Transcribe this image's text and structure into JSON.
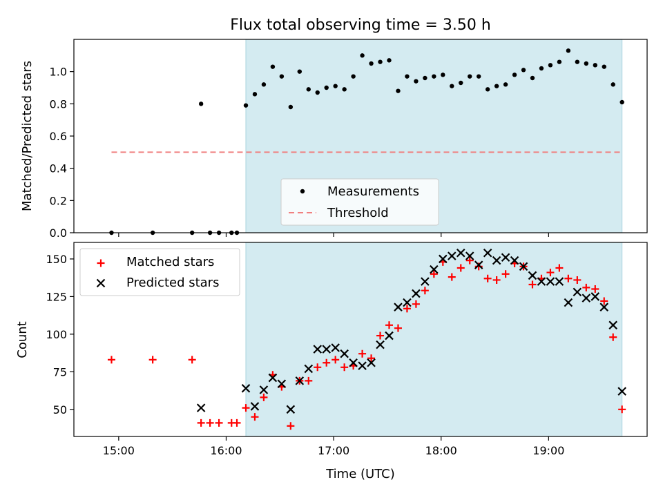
{
  "title": "Flux total observing time = 3.50 h",
  "chart_data": [
    {
      "type": "scatter",
      "ylabel": "Matched/Predicted stars",
      "xlabel": "",
      "xlim": [
        "14:35",
        "19:55"
      ],
      "ylim": [
        0,
        1.2
      ],
      "yticks": [
        0.0,
        0.2,
        0.4,
        0.6,
        0.8,
        1.0
      ],
      "ytick_labels": [
        "0.0",
        "0.2",
        "0.4",
        "0.6",
        "0.8",
        "1.0"
      ],
      "xticks": [
        "15:00",
        "16:00",
        "17:00",
        "18:00",
        "19:00"
      ],
      "shaded_span": [
        "16:11",
        "19:41"
      ],
      "shade_color": "#d4ebf1",
      "legend_position": "lower center",
      "series": [
        {
          "name": "Measurements",
          "marker": "dot",
          "color": "#000000",
          "x": [
            "14:56",
            "15:19",
            "15:41",
            "15:46",
            "15:51",
            "15:56",
            "16:03",
            "16:06",
            "16:11",
            "16:16",
            "16:21",
            "16:26",
            "16:31",
            "16:36",
            "16:41",
            "16:46",
            "16:51",
            "16:56",
            "17:01",
            "17:06",
            "17:11",
            "17:16",
            "17:21",
            "17:26",
            "17:31",
            "17:36",
            "17:41",
            "17:46",
            "17:51",
            "17:56",
            "18:01",
            "18:06",
            "18:11",
            "18:16",
            "18:21",
            "18:26",
            "18:31",
            "18:36",
            "18:41",
            "18:46",
            "18:51",
            "18:56",
            "19:01",
            "19:06",
            "19:11",
            "19:16",
            "19:21",
            "19:26",
            "19:31",
            "19:36",
            "19:41"
          ],
          "y": [
            0.0,
            0.0,
            0.0,
            0.8,
            0.0,
            0.0,
            0.0,
            0.0,
            0.79,
            0.86,
            0.92,
            1.03,
            0.97,
            0.78,
            1.0,
            0.89,
            0.87,
            0.9,
            0.91,
            0.89,
            0.97,
            1.1,
            1.05,
            1.06,
            1.07,
            0.88,
            0.97,
            0.94,
            0.96,
            0.97,
            0.98,
            0.91,
            0.93,
            0.97,
            0.97,
            0.89,
            0.91,
            0.92,
            0.98,
            1.01,
            0.96,
            1.02,
            1.04,
            1.06,
            1.13,
            1.06,
            1.05,
            1.04,
            1.03,
            0.92,
            0.81
          ]
        },
        {
          "name": "Threshold",
          "marker": "dashed-line",
          "color": "#f08080",
          "x": [
            "14:56",
            "19:41"
          ],
          "y": [
            0.5,
            0.5
          ]
        }
      ]
    },
    {
      "type": "scatter",
      "ylabel": "Count",
      "xlabel": "Time (UTC)",
      "xlim": [
        "14:35",
        "19:55"
      ],
      "ylim": [
        32,
        161
      ],
      "yticks": [
        50,
        75,
        100,
        125,
        150
      ],
      "ytick_labels": [
        "50",
        "75",
        "100",
        "125",
        "150"
      ],
      "xticks": [
        "15:00",
        "16:00",
        "17:00",
        "18:00",
        "19:00"
      ],
      "xtick_labels": [
        "15:00",
        "16:00",
        "17:00",
        "18:00",
        "19:00"
      ],
      "shaded_span": [
        "16:11",
        "19:41"
      ],
      "shade_color": "#d4ebf1",
      "legend_position": "upper left",
      "series": [
        {
          "name": "Matched stars",
          "marker": "plus",
          "color": "#ff0000",
          "x": [
            "14:56",
            "15:19",
            "15:41",
            "15:46",
            "15:51",
            "15:56",
            "16:03",
            "16:06",
            "16:11",
            "16:16",
            "16:21",
            "16:26",
            "16:31",
            "16:36",
            "16:41",
            "16:46",
            "16:51",
            "16:56",
            "17:01",
            "17:06",
            "17:11",
            "17:16",
            "17:21",
            "17:26",
            "17:31",
            "17:36",
            "17:41",
            "17:46",
            "17:51",
            "17:56",
            "18:01",
            "18:06",
            "18:11",
            "18:16",
            "18:21",
            "18:26",
            "18:31",
            "18:36",
            "18:41",
            "18:46",
            "18:51",
            "18:56",
            "19:01",
            "19:06",
            "19:11",
            "19:16",
            "19:21",
            "19:26",
            "19:31",
            "19:36",
            "19:41"
          ],
          "y": [
            83,
            83,
            83,
            41,
            41,
            41,
            41,
            41,
            51,
            45,
            58,
            73,
            65,
            39,
            69,
            69,
            78,
            81,
            83,
            78,
            79,
            87,
            84,
            99,
            106,
            104,
            117,
            120,
            129,
            140,
            148,
            138,
            144,
            149,
            145,
            137,
            136,
            140,
            147,
            145,
            133,
            137,
            141,
            144,
            137,
            136,
            131,
            130,
            122,
            98,
            50
          ]
        },
        {
          "name": "Predicted stars",
          "marker": "x",
          "color": "#000000",
          "x": [
            "15:46",
            "16:11",
            "16:16",
            "16:21",
            "16:26",
            "16:31",
            "16:36",
            "16:41",
            "16:46",
            "16:51",
            "16:56",
            "17:01",
            "17:06",
            "17:11",
            "17:16",
            "17:21",
            "17:26",
            "17:31",
            "17:36",
            "17:41",
            "17:46",
            "17:51",
            "17:56",
            "18:01",
            "18:06",
            "18:11",
            "18:16",
            "18:21",
            "18:26",
            "18:31",
            "18:36",
            "18:41",
            "18:46",
            "18:51",
            "18:56",
            "19:01",
            "19:06",
            "19:11",
            "19:16",
            "19:21",
            "19:26",
            "19:31",
            "19:36",
            "19:41"
          ],
          "y": [
            51,
            64,
            52,
            63,
            71,
            67,
            50,
            69,
            77,
            90,
            90,
            91,
            87,
            81,
            79,
            81,
            93,
            99,
            118,
            121,
            127,
            135,
            143,
            150,
            152,
            154,
            152,
            146,
            154,
            149,
            151,
            149,
            145,
            139,
            135,
            135,
            135,
            121,
            128,
            124,
            125,
            118,
            106,
            62
          ]
        }
      ]
    }
  ]
}
